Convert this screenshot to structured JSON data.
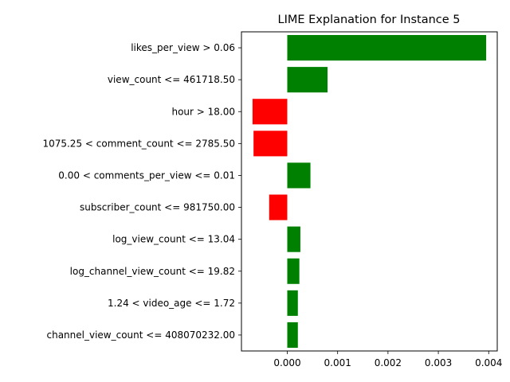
{
  "chart_data": {
    "type": "bar",
    "orientation": "horizontal",
    "title": "LIME Explanation for Instance 5",
    "xlabel": "",
    "ylabel": "",
    "categories": [
      "likes_per_view > 0.06",
      "view_count <= 461718.50",
      "hour > 18.00",
      "1075.25 < comment_count <= 2785.50",
      "0.00 < comments_per_view <= 0.01",
      "subscriber_count <= 981750.00",
      "log_view_count <= 13.04",
      "log_channel_view_count <= 19.82",
      "1.24 < video_age <= 1.72",
      "channel_view_count <= 408070232.00"
    ],
    "values": [
      0.00395,
      0.0008,
      -0.00069,
      -0.00067,
      0.00046,
      -0.00036,
      0.00026,
      0.00024,
      0.00021,
      0.00021
    ],
    "xlim": [
      -0.00091,
      0.00417
    ],
    "xticks": [
      0.0,
      0.001,
      0.002,
      0.003,
      0.004
    ],
    "xtick_labels": [
      "0.000",
      "0.001",
      "0.002",
      "0.003",
      "0.004"
    ],
    "positive_color": "#008000",
    "negative_color": "#ff0000",
    "grid": false,
    "legend": "none"
  }
}
